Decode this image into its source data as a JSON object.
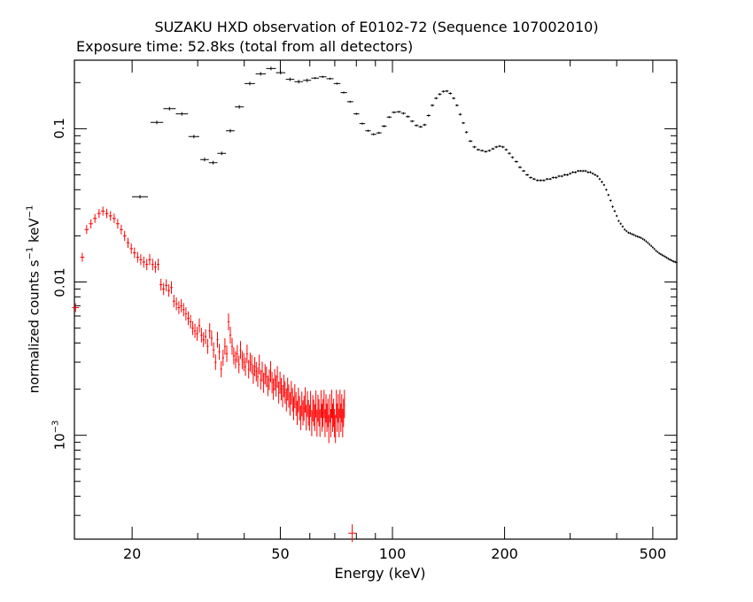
{
  "chart_data": {
    "type": "scatter",
    "title": "SUZAKU HXD observation of E0102-72 (Sequence 107002010)",
    "subtitle": "Exposure time: 52.8ks (total from all detectors)",
    "xlabel": "Energy (keV)",
    "ylabel": {
      "prefix": "normalized counts s",
      "exp1": "−1",
      "mid": " keV",
      "exp2": "−1"
    },
    "xscale": "log",
    "yscale": "log",
    "xlim": [
      14,
      580
    ],
    "ylim": [
      0.00021,
      0.28
    ],
    "x_ticks": [
      {
        "value": 20,
        "label": "20"
      },
      {
        "value": 50,
        "label": "50"
      },
      {
        "value": 100,
        "label": "100"
      },
      {
        "value": 200,
        "label": "200"
      },
      {
        "value": 500,
        "label": "500"
      }
    ],
    "y_ticks": [
      {
        "value": 0.1,
        "label": "0.1"
      },
      {
        "value": 0.01,
        "label": "0.01"
      },
      {
        "value": 0.001,
        "base": "10",
        "exp": "−3"
      }
    ],
    "grid": false,
    "series": [
      {
        "color": "#000000",
        "points": [
          [
            21.0,
            0.036
          ],
          [
            23.3,
            0.11
          ],
          [
            25.2,
            0.135
          ],
          [
            27.2,
            0.125
          ],
          [
            29.3,
            0.089
          ],
          [
            31.3,
            0.063
          ],
          [
            33.0,
            0.06
          ],
          [
            34.8,
            0.069
          ],
          [
            36.7,
            0.097
          ],
          [
            38.8,
            0.139
          ],
          [
            41.4,
            0.197
          ],
          [
            44.3,
            0.228
          ],
          [
            47.2,
            0.247
          ],
          [
            50.1,
            0.232
          ],
          [
            53.1,
            0.21
          ],
          [
            56.0,
            0.203
          ],
          [
            59.0,
            0.207
          ],
          [
            62.0,
            0.214
          ],
          [
            65.0,
            0.218
          ],
          [
            68.0,
            0.212
          ],
          [
            71.0,
            0.197
          ],
          [
            74.0,
            0.172
          ],
          [
            77.0,
            0.15
          ],
          [
            80.0,
            0.125
          ],
          [
            83.0,
            0.108
          ],
          [
            86.0,
            0.097
          ],
          [
            89.0,
            0.092
          ],
          [
            92.0,
            0.094
          ],
          [
            95.0,
            0.104
          ],
          [
            98.0,
            0.119
          ],
          [
            101.0,
            0.128
          ],
          [
            104.0,
            0.129
          ],
          [
            107.0,
            0.126
          ],
          [
            110.0,
            0.12
          ],
          [
            113.0,
            0.112
          ],
          [
            116.0,
            0.105
          ],
          [
            119.0,
            0.103
          ],
          [
            122.0,
            0.106
          ],
          [
            125.0,
            0.122
          ],
          [
            128.0,
            0.142
          ],
          [
            131.0,
            0.158
          ],
          [
            134.0,
            0.168
          ],
          [
            137.0,
            0.175
          ],
          [
            140.0,
            0.176
          ],
          [
            143.0,
            0.17
          ],
          [
            146.0,
            0.158
          ],
          [
            149.0,
            0.142
          ],
          [
            152.0,
            0.124
          ],
          [
            155.0,
            0.109
          ],
          [
            158.0,
            0.095
          ],
          [
            162.0,
            0.083
          ],
          [
            166.0,
            0.076
          ],
          [
            170.0,
            0.073
          ],
          [
            174.0,
            0.072
          ],
          [
            178.0,
            0.071
          ],
          [
            182.0,
            0.072
          ],
          [
            186.0,
            0.074
          ],
          [
            190.0,
            0.076
          ],
          [
            194.0,
            0.077
          ],
          [
            198.0,
            0.076
          ],
          [
            202.0,
            0.073
          ],
          [
            206.0,
            0.069
          ],
          [
            210.0,
            0.065
          ],
          [
            215.0,
            0.061
          ],
          [
            220.0,
            0.056
          ],
          [
            225.0,
            0.053
          ],
          [
            230.0,
            0.05
          ],
          [
            235.0,
            0.048
          ],
          [
            240.0,
            0.047
          ],
          [
            245.0,
            0.046
          ],
          [
            250.0,
            0.046
          ],
          [
            255.0,
            0.046
          ],
          [
            260.0,
            0.047
          ],
          [
            265.0,
            0.047
          ],
          [
            270.0,
            0.048
          ],
          [
            275.0,
            0.048
          ],
          [
            280.0,
            0.049
          ],
          [
            285.0,
            0.049
          ],
          [
            290.0,
            0.05
          ],
          [
            295.0,
            0.05
          ],
          [
            300.0,
            0.051
          ],
          [
            305.0,
            0.052
          ],
          [
            310.0,
            0.052
          ],
          [
            315.0,
            0.053
          ],
          [
            320.0,
            0.053
          ],
          [
            325.0,
            0.053
          ],
          [
            330.0,
            0.053
          ],
          [
            335.0,
            0.052
          ],
          [
            340.0,
            0.052
          ],
          [
            345.0,
            0.051
          ],
          [
            350.0,
            0.05
          ],
          [
            355.0,
            0.049
          ],
          [
            360.0,
            0.047
          ],
          [
            365.0,
            0.045
          ],
          [
            370.0,
            0.043
          ],
          [
            375.0,
            0.04
          ],
          [
            380.0,
            0.037
          ],
          [
            385.0,
            0.034
          ],
          [
            390.0,
            0.031
          ],
          [
            395.0,
            0.029
          ],
          [
            400.0,
            0.027
          ],
          [
            405.0,
            0.025
          ],
          [
            410.0,
            0.024
          ],
          [
            415.0,
            0.023
          ],
          [
            420.0,
            0.022
          ],
          [
            425.0,
            0.0215
          ],
          [
            430.0,
            0.021
          ],
          [
            435.0,
            0.0208
          ],
          [
            440.0,
            0.0205
          ],
          [
            445.0,
            0.0203
          ],
          [
            450.0,
            0.02
          ],
          [
            455.0,
            0.0198
          ],
          [
            460.0,
            0.0196
          ],
          [
            465.0,
            0.0194
          ],
          [
            470.0,
            0.0191
          ],
          [
            475.0,
            0.0188
          ],
          [
            480.0,
            0.0184
          ],
          [
            485.0,
            0.018
          ],
          [
            490.0,
            0.0176
          ],
          [
            495.0,
            0.0172
          ],
          [
            500.0,
            0.0168
          ],
          [
            505.0,
            0.0164
          ],
          [
            510.0,
            0.016
          ],
          [
            515.0,
            0.0157
          ],
          [
            520.0,
            0.0154
          ],
          [
            525.0,
            0.0152
          ],
          [
            530.0,
            0.015
          ],
          [
            535.0,
            0.0148
          ],
          [
            540.0,
            0.0146
          ],
          [
            545.0,
            0.0144
          ],
          [
            550.0,
            0.0142
          ],
          [
            555.0,
            0.014
          ],
          [
            560.0,
            0.0139
          ],
          [
            565.0,
            0.0137
          ],
          [
            570.0,
            0.0136
          ],
          [
            575.0,
            0.0135
          ],
          [
            580.0,
            0.0134
          ]
        ]
      },
      {
        "color": "#ff0000",
        "points": [
          [
            14.1,
            0.0068
          ],
          [
            14.7,
            0.0145
          ],
          [
            15.1,
            0.022
          ],
          [
            15.5,
            0.024
          ],
          [
            15.9,
            0.026
          ],
          [
            16.3,
            0.028
          ],
          [
            16.7,
            0.029
          ],
          [
            17.1,
            0.028
          ],
          [
            17.5,
            0.027
          ],
          [
            17.9,
            0.026
          ],
          [
            18.3,
            0.024
          ],
          [
            18.7,
            0.022
          ],
          [
            19.1,
            0.02
          ],
          [
            19.5,
            0.018
          ],
          [
            19.9,
            0.0165
          ],
          [
            20.3,
            0.0155
          ],
          [
            20.7,
            0.0145
          ],
          [
            21.1,
            0.014
          ],
          [
            21.5,
            0.0135
          ],
          [
            21.9,
            0.013
          ],
          [
            22.3,
            0.014
          ],
          [
            22.7,
            0.013
          ],
          [
            23.1,
            0.0125
          ],
          [
            23.5,
            0.013
          ],
          [
            23.9,
            0.0096
          ],
          [
            24.3,
            0.009
          ],
          [
            24.7,
            0.0095
          ],
          [
            25.1,
            0.0088
          ],
          [
            25.5,
            0.0092
          ],
          [
            25.9,
            0.0075
          ],
          [
            26.3,
            0.0072
          ],
          [
            26.7,
            0.0068
          ],
          [
            27.1,
            0.007
          ],
          [
            27.5,
            0.0066
          ],
          [
            27.9,
            0.0062
          ],
          [
            28.3,
            0.0058
          ],
          [
            28.7,
            0.0055
          ],
          [
            29.1,
            0.005
          ],
          [
            29.5,
            0.0048
          ],
          [
            29.9,
            0.0046
          ],
          [
            30.3,
            0.0052
          ],
          [
            30.7,
            0.0045
          ],
          [
            31.1,
            0.0042
          ],
          [
            31.5,
            0.0044
          ],
          [
            31.9,
            0.0038
          ],
          [
            32.3,
            0.0048
          ],
          [
            32.7,
            0.0043
          ],
          [
            33.1,
            0.0036
          ],
          [
            33.5,
            0.003
          ],
          [
            33.9,
            0.0042
          ],
          [
            34.3,
            0.0035
          ],
          [
            34.7,
            0.0027
          ],
          [
            35.1,
            0.0032
          ],
          [
            35.5,
            0.0038
          ],
          [
            35.9,
            0.0034
          ],
          [
            36.3,
            0.0055
          ],
          [
            36.7,
            0.0045
          ],
          [
            37.1,
            0.0038
          ],
          [
            37.5,
            0.0033
          ],
          [
            37.9,
            0.0031
          ],
          [
            38.3,
            0.0034
          ],
          [
            38.7,
            0.0029
          ],
          [
            39.1,
            0.0036
          ],
          [
            39.5,
            0.0031
          ],
          [
            39.9,
            0.003
          ],
          [
            40.3,
            0.0028
          ],
          [
            40.7,
            0.0034
          ],
          [
            41.1,
            0.0027
          ],
          [
            41.5,
            0.003
          ],
          [
            41.9,
            0.0029
          ],
          [
            42.3,
            0.0025
          ],
          [
            42.7,
            0.0028
          ],
          [
            43.1,
            0.0026
          ],
          [
            43.5,
            0.0024
          ],
          [
            43.9,
            0.0029
          ],
          [
            44.3,
            0.0023
          ],
          [
            44.7,
            0.0026
          ],
          [
            45.1,
            0.0022
          ],
          [
            45.5,
            0.0025
          ],
          [
            45.9,
            0.0024
          ],
          [
            46.3,
            0.0021
          ],
          [
            46.7,
            0.0023
          ],
          [
            47.1,
            0.0026
          ],
          [
            47.5,
            0.0022
          ],
          [
            47.9,
            0.002
          ],
          [
            48.3,
            0.0023
          ],
          [
            48.7,
            0.0021
          ],
          [
            49.1,
            0.0024
          ],
          [
            49.5,
            0.0019
          ],
          [
            49.9,
            0.0022
          ],
          [
            50.3,
            0.002
          ],
          [
            50.7,
            0.0018
          ],
          [
            51.1,
            0.0021
          ],
          [
            51.5,
            0.0019
          ],
          [
            51.9,
            0.0017
          ],
          [
            52.3,
            0.002
          ],
          [
            52.7,
            0.0018
          ],
          [
            53.1,
            0.0016
          ],
          [
            53.5,
            0.0019
          ],
          [
            53.9,
            0.0017
          ],
          [
            54.3,
            0.0015
          ],
          [
            54.7,
            0.0018
          ],
          [
            55.1,
            0.0016
          ],
          [
            55.5,
            0.0014
          ],
          [
            55.9,
            0.0017
          ],
          [
            56.3,
            0.0015
          ],
          [
            56.7,
            0.0013
          ],
          [
            57.1,
            0.0016
          ],
          [
            57.5,
            0.0014
          ],
          [
            57.9,
            0.0015
          ],
          [
            58.3,
            0.0017
          ],
          [
            58.7,
            0.0013
          ],
          [
            59.1,
            0.0016
          ],
          [
            59.5,
            0.0014
          ],
          [
            59.9,
            0.0013
          ],
          [
            60.3,
            0.0016
          ],
          [
            60.7,
            0.0012
          ],
          [
            61.1,
            0.0015
          ],
          [
            61.5,
            0.0014
          ],
          [
            61.9,
            0.0013
          ],
          [
            62.3,
            0.0016
          ],
          [
            62.7,
            0.0012
          ],
          [
            63.1,
            0.0015
          ],
          [
            63.5,
            0.0014
          ],
          [
            63.9,
            0.0012
          ],
          [
            64.3,
            0.0016
          ],
          [
            64.7,
            0.0013
          ],
          [
            65.1,
            0.0014
          ],
          [
            65.5,
            0.0016
          ],
          [
            65.9,
            0.0012
          ],
          [
            66.3,
            0.0015
          ],
          [
            66.7,
            0.0013
          ],
          [
            67.1,
            0.0014
          ],
          [
            67.5,
            0.0011
          ],
          [
            67.9,
            0.0015
          ],
          [
            68.3,
            0.0012
          ],
          [
            68.7,
            0.0016
          ],
          [
            69.1,
            0.0013
          ],
          [
            69.5,
            0.0014
          ],
          [
            69.9,
            0.0012
          ],
          [
            70.3,
            0.0011
          ],
          [
            70.7,
            0.0016
          ],
          [
            71.1,
            0.0013
          ],
          [
            71.5,
            0.0015
          ],
          [
            71.9,
            0.0012
          ],
          [
            72.3,
            0.0016
          ],
          [
            72.7,
            0.0013
          ],
          [
            73.1,
            0.0015
          ],
          [
            73.5,
            0.0012
          ],
          [
            73.9,
            0.0014
          ],
          [
            74.3,
            0.0016
          ],
          [
            78.0,
            0.00023
          ]
        ]
      }
    ]
  }
}
